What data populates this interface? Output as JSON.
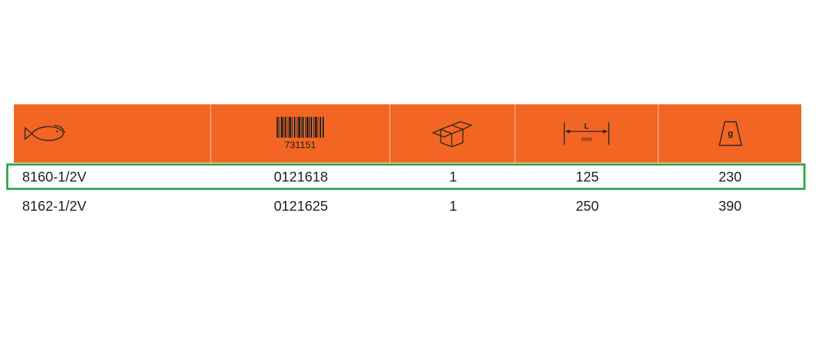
{
  "header": {
    "columns": [
      {
        "icon": "fish-icon"
      },
      {
        "icon": "barcode-icon",
        "label": "731151"
      },
      {
        "icon": "box-icon"
      },
      {
        "icon": "length-icon",
        "label": "L",
        "unit": "mm"
      },
      {
        "icon": "weight-icon",
        "label": "g"
      }
    ]
  },
  "rows": [
    [
      "8160-1/2V",
      "0121618",
      "1",
      "125",
      "230"
    ],
    [
      "8162-1/2V",
      "0121625",
      "1",
      "250",
      "390"
    ]
  ],
  "colors": {
    "header_bg": "#f26522",
    "highlight": "#2eaa4a"
  }
}
